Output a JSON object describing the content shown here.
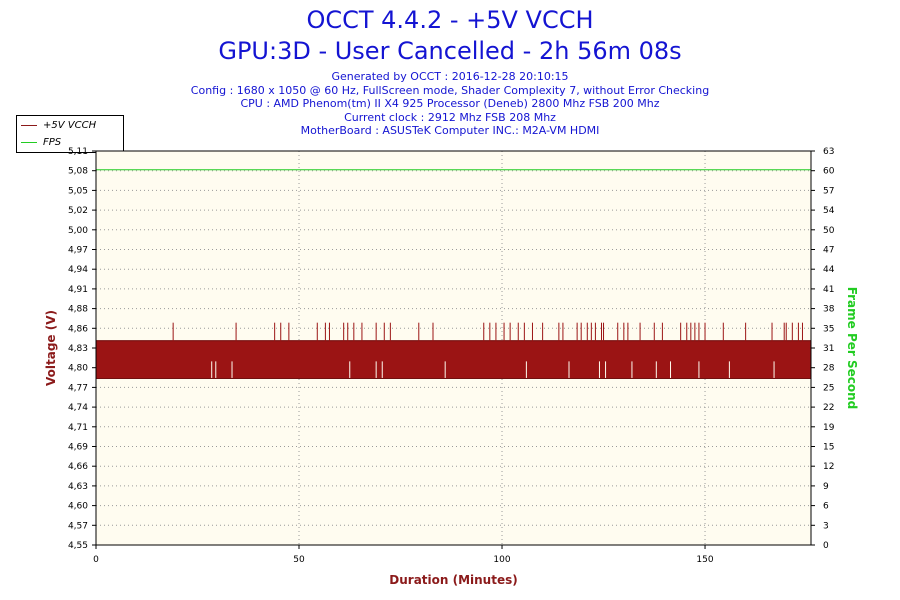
{
  "header": {
    "title": "OCCT 4.4.2 - +5V VCCH",
    "subtitle": "GPU:3D - User Cancelled - 2h 56m 08s",
    "info_lines": [
      "Generated by OCCT : 2016-12-28 20:10:15",
      "Config : 1680 x 1050 @ 60 Hz, FullScreen mode, Shader Complexity 7, without Error Checking",
      "CPU : AMD Phenom(tm) II X4 925 Processor (Deneb) 2800 Mhz FSB 200 Mhz",
      "Current clock : 2912 Mhz FSB 208 Mhz",
      "MotherBoard : ASUSTeK Computer INC.: M2A-VM HDMI"
    ]
  },
  "legend": {
    "items": [
      {
        "label": "+5V VCCH",
        "color": "#8b1a1a"
      },
      {
        "label": "FPS",
        "color": "#22cc22"
      }
    ]
  },
  "chart_data": {
    "type": "line",
    "xlabel": "Duration (Minutes)",
    "ylabel": "Voltage (V)",
    "y2label": "Frame Per Second",
    "xlim": [
      0,
      176.1
    ],
    "ylim": [
      4.55,
      5.11
    ],
    "y2lim": [
      0,
      63
    ],
    "x_ticks": [
      0,
      50,
      100,
      150
    ],
    "y_ticks": [
      "4,55",
      "4,57",
      "4,60",
      "4,63",
      "4,66",
      "4,69",
      "4,71",
      "4,74",
      "4,77",
      "4,80",
      "4,83",
      "4,86",
      "4,88",
      "4,91",
      "4,94",
      "4,97",
      "5,00",
      "5,02",
      "5,05",
      "5,08",
      "5,11"
    ],
    "y2_ticks": [
      "0",
      "3",
      "6",
      "9",
      "12",
      "15",
      "19",
      "22",
      "25",
      "28",
      "31",
      "35",
      "38",
      "41",
      "44",
      "47",
      "50",
      "54",
      "57",
      "60",
      "63"
    ],
    "series": [
      {
        "name": "+5V VCCH",
        "color": "#9b1414",
        "band_low": 4.786,
        "band_high": 4.841,
        "spikes_high": 4.866,
        "dips_low": 4.811,
        "spike_times": [
          19,
          34.5,
          44,
          45.5,
          47.5,
          54.5,
          56.5,
          57.5,
          61,
          62,
          63.5,
          65.5,
          69,
          71,
          72.5,
          79.5,
          83,
          95.5,
          97,
          98.5,
          100.5,
          102,
          104,
          105.5,
          107.5,
          110,
          114,
          115,
          118.5,
          119.5,
          121,
          122,
          123,
          124.5,
          125,
          128.5,
          130,
          131,
          134,
          137.5,
          139.5,
          144,
          145.5,
          146.5,
          147.5,
          148.5,
          150,
          154.5,
          160,
          166.5,
          169.5,
          170,
          171.5,
          173,
          174
        ],
        "dip_times": [
          28.5,
          29.5,
          33.5,
          62.5,
          69,
          70.5,
          86,
          106,
          116.5,
          124,
          125.5,
          132,
          138,
          141.5,
          148.5,
          156,
          167
        ]
      },
      {
        "name": "FPS",
        "color": "#22cc22",
        "values_constant": 60,
        "axis": "right"
      }
    ],
    "grid": true,
    "legend_position": "top-left"
  }
}
